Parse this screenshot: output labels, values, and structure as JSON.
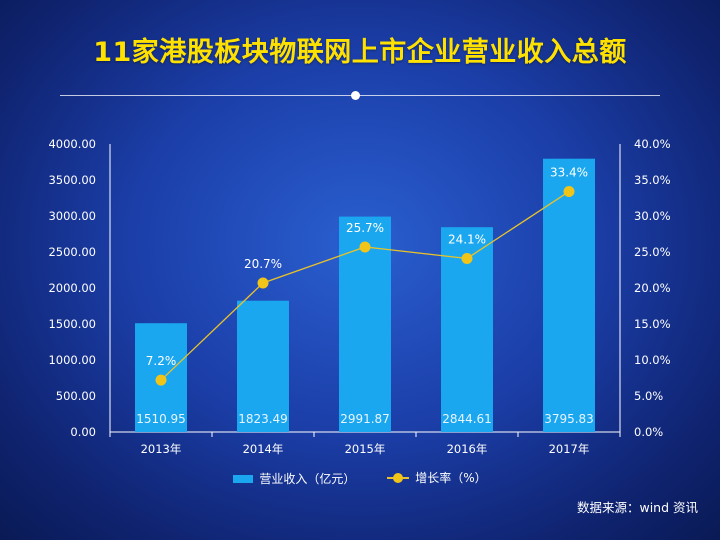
{
  "title": "11家港股板块物联网上市企业营业收入总额",
  "source": "数据来源：wind 资讯",
  "legend": {
    "bar": "营业收入（亿元）",
    "line": "增长率（%）"
  },
  "colors": {
    "bar": "#1aa7f0",
    "line": "#e8c22a",
    "marker": "#f0c419",
    "title": "#ffe100"
  },
  "chart_data": {
    "type": "bar",
    "categories": [
      "2013年",
      "2014年",
      "2015年",
      "2016年",
      "2017年"
    ],
    "series": [
      {
        "name": "营业收入（亿元）",
        "type": "bar",
        "axis": "left",
        "values": [
          1510.95,
          1823.49,
          2991.87,
          2844.61,
          3795.83
        ],
        "labels": [
          "1510.95",
          "1823.49",
          "2991.87",
          "2844.61",
          "3795.83"
        ]
      },
      {
        "name": "增长率（%）",
        "type": "line",
        "axis": "right",
        "values": [
          7.2,
          20.7,
          25.7,
          24.1,
          33.4
        ],
        "labels": [
          "7.2%",
          "20.7%",
          "25.7%",
          "24.1%",
          "33.4%"
        ]
      }
    ],
    "ylim": [
      0,
      4000
    ],
    "y2lim": [
      0,
      40
    ],
    "yticks": [
      "0.00",
      "500.00",
      "1000.00",
      "1500.00",
      "2000.00",
      "2500.00",
      "3000.00",
      "3500.00",
      "4000.00"
    ],
    "y2ticks": [
      "0.0%",
      "5.0%",
      "10.0%",
      "15.0%",
      "20.0%",
      "25.0%",
      "30.0%",
      "35.0%",
      "40.0%"
    ],
    "grid": false,
    "legend_position": "bottom"
  }
}
